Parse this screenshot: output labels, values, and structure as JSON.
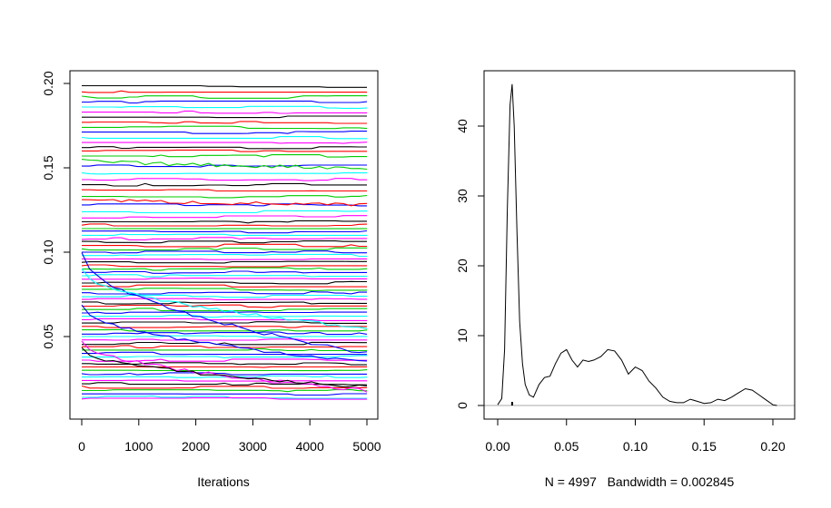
{
  "chart_data": [
    {
      "type": "line",
      "title": "",
      "xlabel": "Iterations",
      "ylabel": "",
      "xlim": [
        0,
        5000
      ],
      "ylim": [
        0.01,
        0.2
      ],
      "x_ticks": [
        "0",
        "1000",
        "2000",
        "3000",
        "4000",
        "5000"
      ],
      "y_ticks": [
        "0.05",
        "0.10",
        "0.15",
        "0.20"
      ],
      "n_iterations": 5000,
      "series_colors": [
        "#000000",
        "#ff0000",
        "#00cc00",
        "#0000ff",
        "#00ffff",
        "#ff00ff"
      ],
      "band_levels": [
        0.198,
        0.195,
        0.192,
        0.189,
        0.186,
        0.183,
        0.18,
        0.177,
        0.174,
        0.171,
        0.168,
        0.165,
        0.162,
        0.16,
        0.157,
        0.151,
        0.147,
        0.143,
        0.14,
        0.137,
        0.133,
        0.128,
        0.124,
        0.121,
        0.118,
        0.116,
        0.114,
        0.112,
        0.11,
        0.108,
        0.106,
        0.104,
        0.102,
        0.1,
        0.098,
        0.096,
        0.094,
        0.092,
        0.09,
        0.088,
        0.086,
        0.084,
        0.082,
        0.08,
        0.078,
        0.076,
        0.074,
        0.072,
        0.07,
        0.068,
        0.066,
        0.064,
        0.062,
        0.06,
        0.058,
        0.056,
        0.054,
        0.052,
        0.05,
        0.048,
        0.046,
        0.044,
        0.042,
        0.04,
        0.038,
        0.036,
        0.034,
        0.032,
        0.03,
        0.028,
        0.026,
        0.024,
        0.022,
        0.02,
        0.018,
        0.016,
        0.014,
        0.013
      ],
      "drifting_traces": [
        {
          "start": 0.1,
          "end": 0.04
        },
        {
          "start": 0.09,
          "end": 0.055
        },
        {
          "start": 0.048,
          "end": 0.018
        },
        {
          "start": 0.043,
          "end": 0.02
        },
        {
          "start": 0.132,
          "end": 0.128
        },
        {
          "start": 0.155,
          "end": 0.15
        },
        {
          "start": 0.068,
          "end": 0.035
        }
      ]
    },
    {
      "type": "area",
      "title": "",
      "xlabel": "N = 4997   Bandwidth = 0.002845",
      "ylabel": "",
      "xlim": [
        -0.005,
        0.215
      ],
      "ylim": [
        0,
        46
      ],
      "x_ticks": [
        "0.00",
        "0.05",
        "0.10",
        "0.15",
        "0.20"
      ],
      "y_ticks": [
        "0",
        "10",
        "20",
        "30",
        "40"
      ],
      "density_curve": {
        "x": [
          0.0,
          0.003,
          0.005,
          0.007,
          0.009,
          0.0105,
          0.012,
          0.014,
          0.016,
          0.018,
          0.02,
          0.023,
          0.026,
          0.03,
          0.034,
          0.038,
          0.042,
          0.046,
          0.05,
          0.054,
          0.058,
          0.062,
          0.066,
          0.07,
          0.075,
          0.08,
          0.085,
          0.09,
          0.095,
          0.1,
          0.105,
          0.11,
          0.115,
          0.12,
          0.125,
          0.13,
          0.135,
          0.14,
          0.145,
          0.15,
          0.155,
          0.16,
          0.165,
          0.17,
          0.175,
          0.18,
          0.185,
          0.19,
          0.195,
          0.2,
          0.203
        ],
        "y": [
          0.1,
          1.0,
          8.0,
          28.0,
          43.0,
          46.0,
          40.0,
          25.0,
          12.0,
          6.0,
          3.0,
          1.5,
          1.2,
          3.0,
          4.0,
          4.2,
          6.0,
          7.5,
          8.0,
          6.5,
          5.5,
          6.5,
          6.3,
          6.5,
          7.0,
          8.0,
          7.8,
          6.5,
          4.5,
          5.5,
          5.0,
          3.5,
          2.5,
          1.2,
          0.6,
          0.4,
          0.4,
          0.9,
          0.6,
          0.3,
          0.4,
          0.9,
          0.7,
          1.2,
          1.8,
          2.4,
          2.2,
          1.5,
          0.8,
          0.1,
          0.0
        ]
      },
      "rug_marker": {
        "x": 0.0105,
        "y": 0.3
      }
    }
  ]
}
